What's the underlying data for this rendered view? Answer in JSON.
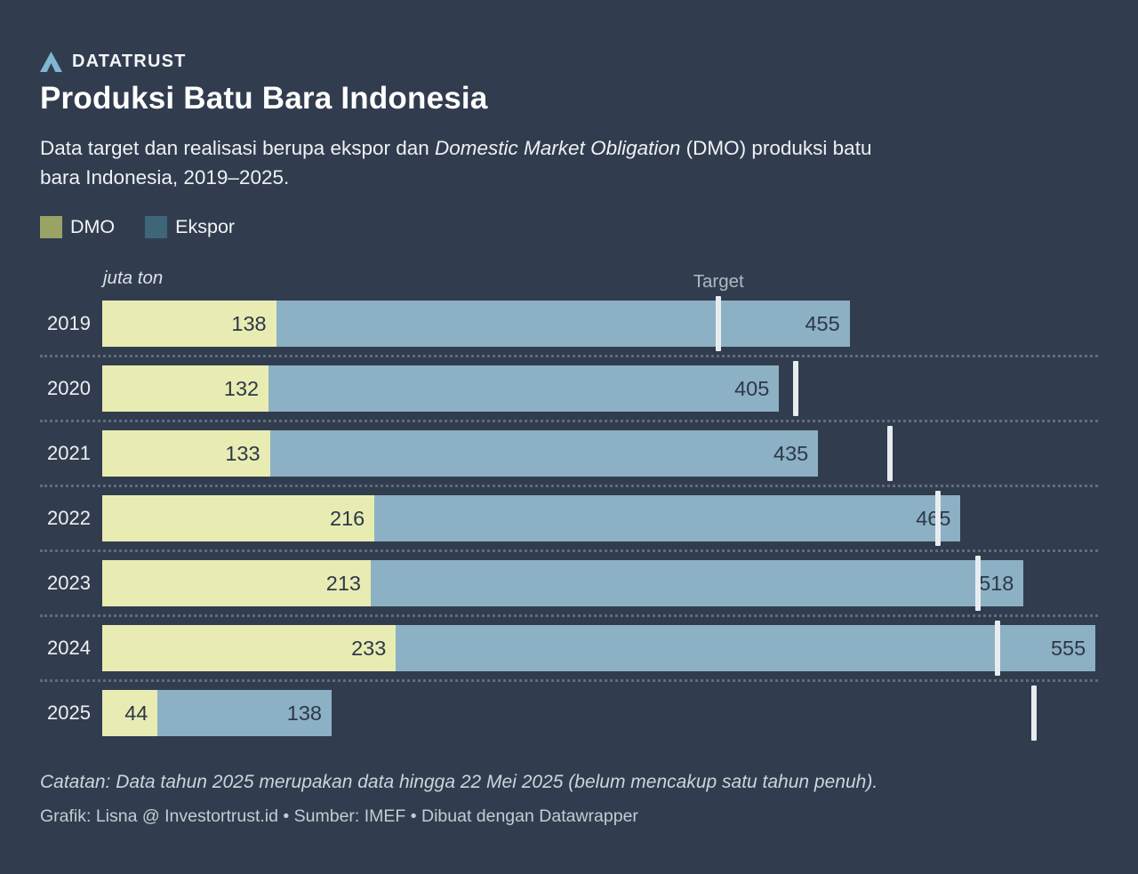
{
  "page": {
    "background": "#313d4e"
  },
  "brand": {
    "name": "DATATRUST",
    "logo_color": "#7fb6d2"
  },
  "header": {
    "title": "Produksi Batu Bara Indonesia",
    "subtitle_pre": "Data target dan realisasi berupa ekspor dan ",
    "subtitle_italic": "Domestic Market Obligation",
    "subtitle_post": " (DMO) produksi batu bara Indonesia, 2019–2025."
  },
  "legend": {
    "items": [
      {
        "label": "DMO",
        "swatch_color": "#99a366"
      },
      {
        "label": "Ekspor",
        "swatch_color": "#3e6578"
      }
    ]
  },
  "chart_data": {
    "type": "bar",
    "orientation": "horizontal",
    "stacked": true,
    "unit_label": "juta ton",
    "target_marker_label": "Target",
    "categories": [
      "2019",
      "2020",
      "2021",
      "2022",
      "2023",
      "2024",
      "2025"
    ],
    "series": [
      {
        "name": "DMO",
        "color": "#e8ecb3",
        "values": [
          138,
          132,
          133,
          216,
          213,
          233,
          44
        ]
      },
      {
        "name": "Ekspor",
        "color": "#8cb0c4",
        "values": [
          455,
          405,
          435,
          465,
          518,
          555,
          138
        ]
      }
    ],
    "targets_estimated_from_ticks": [
      489,
      550,
      625,
      663,
      695,
      710,
      739
    ],
    "xlim": [
      0,
      790
    ],
    "legend_position": "top-left",
    "grid": "off",
    "row_separators": "dotted",
    "value_labels": "inside-right",
    "tick_color": "#e9ecef",
    "value_label_color": "#2d3848"
  },
  "footer": {
    "note": "Catatan: Data tahun 2025 merupakan data hingga 22 Mei 2025 (belum mencakup satu tahun penuh).",
    "credit": "Grafik: Lisna @ Investortrust.id • Sumber: IMEF • Dibuat dengan Datawrapper"
  }
}
